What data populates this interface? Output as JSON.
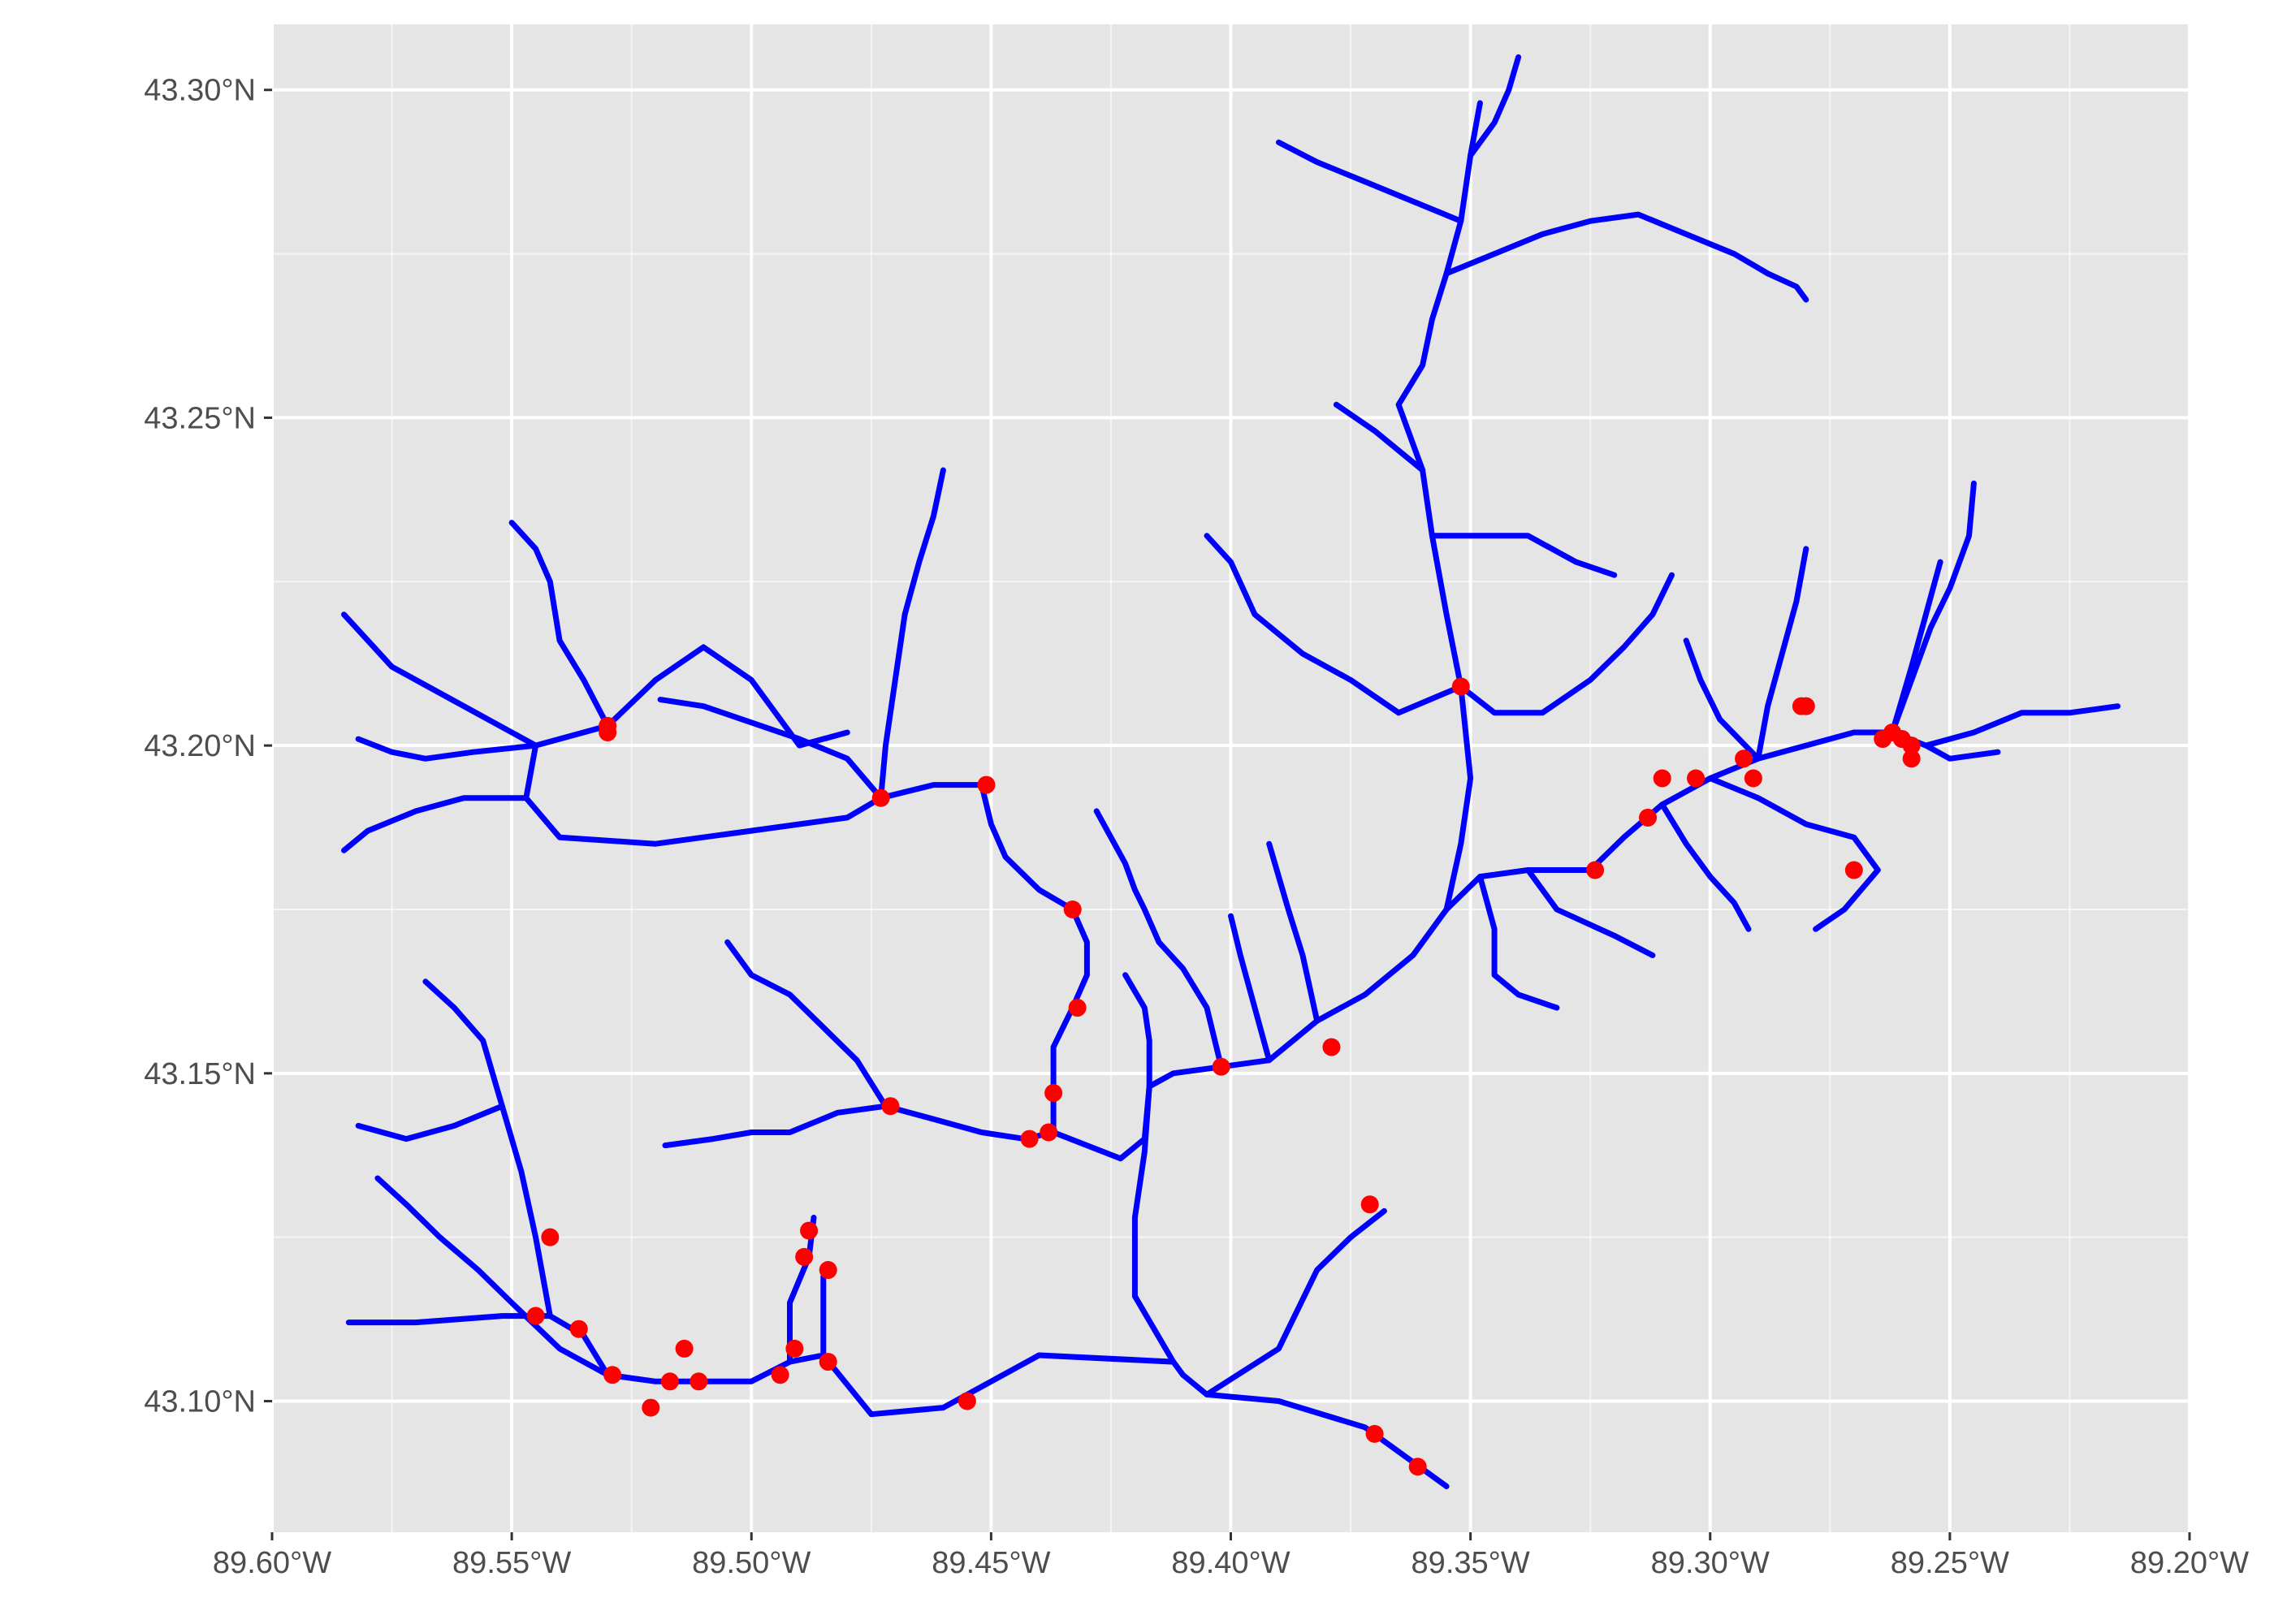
{
  "chart_data": {
    "type": "map",
    "title": "",
    "xlabel": "",
    "ylabel": "",
    "xlim": [
      -89.6,
      -89.2
    ],
    "ylim": [
      43.08,
      43.31
    ],
    "grid": true,
    "background": "#e5e5e5",
    "grid_color": "#ffffff",
    "stream_color": "#0000ff",
    "point_color": "#ff0000",
    "x_ticks": [
      {
        "value": -89.6,
        "label": "89.60°W"
      },
      {
        "value": -89.55,
        "label": "89.55°W"
      },
      {
        "value": -89.5,
        "label": "89.50°W"
      },
      {
        "value": -89.45,
        "label": "89.45°W"
      },
      {
        "value": -89.4,
        "label": "89.40°W"
      },
      {
        "value": -89.35,
        "label": "89.35°W"
      },
      {
        "value": -89.3,
        "label": "89.30°W"
      },
      {
        "value": -89.25,
        "label": "89.25°W"
      },
      {
        "value": -89.2,
        "label": "89.20°W"
      }
    ],
    "y_ticks": [
      {
        "value": 43.1,
        "label": "43.10°N"
      },
      {
        "value": 43.15,
        "label": "43.15°N"
      },
      {
        "value": 43.2,
        "label": "43.20°N"
      },
      {
        "value": 43.25,
        "label": "43.25°N"
      },
      {
        "value": 43.3,
        "label": "43.30°N"
      }
    ],
    "streams": [
      [
        [
          -89.355,
          43.087
        ],
        [
          -89.372,
          43.096
        ],
        [
          -89.39,
          43.1
        ],
        [
          -89.405,
          43.101
        ],
        [
          -89.41,
          43.104
        ],
        [
          -89.412,
          43.106
        ],
        [
          -89.44,
          43.107
        ],
        [
          -89.46,
          43.099
        ],
        [
          -89.475,
          43.098
        ],
        [
          -89.485,
          43.107
        ],
        [
          -89.492,
          43.106
        ],
        [
          -89.5,
          43.103
        ],
        [
          -89.51,
          43.103
        ],
        [
          -89.52,
          43.103
        ],
        [
          -89.53,
          43.104
        ],
        [
          -89.535,
          43.11
        ],
        [
          -89.542,
          43.113
        ],
        [
          -89.552,
          43.113
        ],
        [
          -89.57,
          43.112
        ],
        [
          -89.584,
          43.112
        ]
      ],
      [
        [
          -89.412,
          43.106
        ],
        [
          -89.42,
          43.116
        ],
        [
          -89.42,
          43.128
        ],
        [
          -89.418,
          43.138
        ],
        [
          -89.417,
          43.148
        ],
        [
          -89.412,
          43.15
        ],
        [
          -89.402,
          43.151
        ],
        [
          -89.392,
          43.152
        ],
        [
          -89.382,
          43.158
        ],
        [
          -89.372,
          43.162
        ],
        [
          -89.362,
          43.168
        ],
        [
          -89.355,
          43.175
        ],
        [
          -89.348,
          43.18
        ],
        [
          -89.338,
          43.181
        ],
        [
          -89.325,
          43.181
        ],
        [
          -89.318,
          43.186
        ],
        [
          -89.31,
          43.191
        ],
        [
          -89.3,
          43.195
        ],
        [
          -89.29,
          43.198
        ],
        [
          -89.28,
          43.2
        ],
        [
          -89.27,
          43.202
        ],
        [
          -89.262,
          43.202
        ],
        [
          -89.255,
          43.2
        ],
        [
          -89.25,
          43.198
        ],
        [
          -89.24,
          43.199
        ]
      ],
      [
        [
          -89.417,
          43.148
        ],
        [
          -89.418,
          43.14
        ],
        [
          -89.423,
          43.137
        ],
        [
          -89.43,
          43.139
        ],
        [
          -89.437,
          43.141
        ],
        [
          -89.443,
          43.14
        ],
        [
          -89.452,
          43.141
        ],
        [
          -89.462,
          43.143
        ],
        [
          -89.472,
          43.145
        ],
        [
          -89.482,
          43.144
        ],
        [
          -89.492,
          43.141
        ],
        [
          -89.5,
          43.141
        ],
        [
          -89.508,
          43.14
        ],
        [
          -89.518,
          43.139
        ]
      ],
      [
        [
          -89.472,
          43.145
        ],
        [
          -89.478,
          43.152
        ],
        [
          -89.485,
          43.157
        ],
        [
          -89.492,
          43.162
        ],
        [
          -89.5,
          43.165
        ],
        [
          -89.505,
          43.17
        ]
      ],
      [
        [
          -89.437,
          43.141
        ],
        [
          -89.437,
          43.147
        ],
        [
          -89.437,
          43.154
        ],
        [
          -89.433,
          43.16
        ],
        [
          -89.43,
          43.165
        ],
        [
          -89.43,
          43.17
        ],
        [
          -89.433,
          43.175
        ],
        [
          -89.44,
          43.178
        ],
        [
          -89.447,
          43.183
        ],
        [
          -89.45,
          43.188
        ],
        [
          -89.452,
          43.194
        ],
        [
          -89.462,
          43.194
        ],
        [
          -89.473,
          43.192
        ],
        [
          -89.48,
          43.189
        ],
        [
          -89.49,
          43.188
        ],
        [
          -89.5,
          43.187
        ],
        [
          -89.52,
          43.185
        ],
        [
          -89.54,
          43.186
        ],
        [
          -89.547,
          43.192
        ],
        [
          -89.545,
          43.2
        ],
        [
          -89.53,
          43.203
        ],
        [
          -89.52,
          43.21
        ],
        [
          -89.51,
          43.215
        ],
        [
          -89.5,
          43.21
        ],
        [
          -89.495,
          43.205
        ],
        [
          -89.49,
          43.2
        ],
        [
          -89.48,
          43.202
        ]
      ],
      [
        [
          -89.473,
          43.192
        ],
        [
          -89.472,
          43.2
        ],
        [
          -89.47,
          43.21
        ],
        [
          -89.468,
          43.22
        ],
        [
          -89.465,
          43.228
        ],
        [
          -89.462,
          43.235
        ],
        [
          -89.46,
          43.242
        ]
      ],
      [
        [
          -89.473,
          43.192
        ],
        [
          -89.48,
          43.198
        ],
        [
          -89.49,
          43.201
        ],
        [
          -89.502,
          43.204
        ],
        [
          -89.51,
          43.206
        ],
        [
          -89.519,
          43.207
        ]
      ],
      [
        [
          -89.53,
          43.203
        ],
        [
          -89.535,
          43.21
        ],
        [
          -89.54,
          43.216
        ],
        [
          -89.542,
          43.225
        ],
        [
          -89.545,
          43.23
        ],
        [
          -89.55,
          43.234
        ]
      ],
      [
        [
          -89.545,
          43.2
        ],
        [
          -89.555,
          43.204
        ],
        [
          -89.565,
          43.208
        ],
        [
          -89.575,
          43.212
        ],
        [
          -89.58,
          43.216
        ],
        [
          -89.585,
          43.22
        ]
      ],
      [
        [
          -89.545,
          43.2
        ],
        [
          -89.558,
          43.199
        ],
        [
          -89.568,
          43.198
        ],
        [
          -89.575,
          43.199
        ],
        [
          -89.582,
          43.201
        ]
      ],
      [
        [
          -89.547,
          43.192
        ],
        [
          -89.56,
          43.192
        ],
        [
          -89.57,
          43.19
        ],
        [
          -89.58,
          43.187
        ],
        [
          -89.585,
          43.184
        ]
      ],
      [
        [
          -89.402,
          43.151
        ],
        [
          -89.405,
          43.16
        ],
        [
          -89.41,
          43.166
        ],
        [
          -89.415,
          43.17
        ],
        [
          -89.418,
          43.175
        ],
        [
          -89.42,
          43.178
        ],
        [
          -89.422,
          43.182
        ],
        [
          -89.425,
          43.186
        ],
        [
          -89.428,
          43.19
        ]
      ],
      [
        [
          -89.392,
          43.152
        ],
        [
          -89.395,
          43.16
        ],
        [
          -89.398,
          43.168
        ],
        [
          -89.4,
          43.174
        ]
      ],
      [
        [
          -89.382,
          43.158
        ],
        [
          -89.385,
          43.168
        ],
        [
          -89.388,
          43.175
        ],
        [
          -89.39,
          43.18
        ],
        [
          -89.392,
          43.185
        ]
      ],
      [
        [
          -89.355,
          43.175
        ],
        [
          -89.352,
          43.185
        ],
        [
          -89.35,
          43.195
        ],
        [
          -89.352,
          43.209
        ],
        [
          -89.355,
          43.22
        ],
        [
          -89.358,
          43.232
        ],
        [
          -89.36,
          43.242
        ],
        [
          -89.365,
          43.252
        ],
        [
          -89.36,
          43.258
        ],
        [
          -89.358,
          43.265
        ],
        [
          -89.355,
          43.272
        ],
        [
          -89.352,
          43.28
        ],
        [
          -89.35,
          43.29
        ],
        [
          -89.348,
          43.298
        ]
      ],
      [
        [
          -89.352,
          43.209
        ],
        [
          -89.365,
          43.205
        ],
        [
          -89.375,
          43.21
        ],
        [
          -89.385,
          43.214
        ],
        [
          -89.395,
          43.22
        ],
        [
          -89.4,
          43.228
        ],
        [
          -89.405,
          43.232
        ]
      ],
      [
        [
          -89.352,
          43.209
        ],
        [
          -89.345,
          43.205
        ],
        [
          -89.335,
          43.205
        ],
        [
          -89.325,
          43.21
        ],
        [
          -89.318,
          43.215
        ],
        [
          -89.312,
          43.22
        ],
        [
          -89.308,
          43.226
        ]
      ],
      [
        [
          -89.358,
          43.232
        ],
        [
          -89.348,
          43.232
        ],
        [
          -89.338,
          43.232
        ],
        [
          -89.328,
          43.228
        ],
        [
          -89.32,
          43.226
        ]
      ],
      [
        [
          -89.36,
          43.242
        ],
        [
          -89.37,
          43.248
        ],
        [
          -89.378,
          43.252
        ]
      ],
      [
        [
          -89.355,
          43.272
        ],
        [
          -89.345,
          43.275
        ],
        [
          -89.335,
          43.278
        ],
        [
          -89.325,
          43.28
        ],
        [
          -89.315,
          43.281
        ],
        [
          -89.305,
          43.278
        ],
        [
          -89.295,
          43.275
        ],
        [
          -89.288,
          43.272
        ],
        [
          -89.282,
          43.27
        ],
        [
          -89.28,
          43.268
        ]
      ],
      [
        [
          -89.352,
          43.28
        ],
        [
          -89.362,
          43.283
        ],
        [
          -89.372,
          43.286
        ],
        [
          -89.382,
          43.289
        ],
        [
          -89.39,
          43.292
        ]
      ],
      [
        [
          -89.35,
          43.29
        ],
        [
          -89.345,
          43.295
        ],
        [
          -89.342,
          43.3
        ],
        [
          -89.34,
          43.305
        ]
      ],
      [
        [
          -89.31,
          43.191
        ],
        [
          -89.305,
          43.185
        ],
        [
          -89.3,
          43.18
        ],
        [
          -89.295,
          43.176
        ],
        [
          -89.292,
          43.172
        ]
      ],
      [
        [
          -89.3,
          43.195
        ],
        [
          -89.29,
          43.192
        ],
        [
          -89.28,
          43.188
        ],
        [
          -89.27,
          43.186
        ],
        [
          -89.265,
          43.181
        ],
        [
          -89.272,
          43.175
        ],
        [
          -89.278,
          43.172
        ]
      ],
      [
        [
          -89.29,
          43.198
        ],
        [
          -89.288,
          43.206
        ],
        [
          -89.285,
          43.214
        ],
        [
          -89.282,
          43.222
        ],
        [
          -89.28,
          43.23
        ]
      ],
      [
        [
          -89.29,
          43.198
        ],
        [
          -89.298,
          43.204
        ],
        [
          -89.302,
          43.21
        ],
        [
          -89.305,
          43.216
        ]
      ],
      [
        [
          -89.262,
          43.202
        ],
        [
          -89.258,
          43.21
        ],
        [
          -89.254,
          43.218
        ],
        [
          -89.25,
          43.224
        ],
        [
          -89.246,
          43.232
        ],
        [
          -89.245,
          43.24
        ]
      ],
      [
        [
          -89.255,
          43.2
        ],
        [
          -89.245,
          43.202
        ],
        [
          -89.235,
          43.205
        ],
        [
          -89.225,
          43.205
        ],
        [
          -89.215,
          43.206
        ]
      ],
      [
        [
          -89.262,
          43.202
        ],
        [
          -89.258,
          43.212
        ],
        [
          -89.255,
          43.22
        ],
        [
          -89.252,
          43.228
        ]
      ],
      [
        [
          -89.338,
          43.181
        ],
        [
          -89.332,
          43.175
        ],
        [
          -89.32,
          43.171
        ],
        [
          -89.312,
          43.168
        ]
      ],
      [
        [
          -89.348,
          43.18
        ],
        [
          -89.345,
          43.172
        ],
        [
          -89.345,
          43.165
        ],
        [
          -89.34,
          43.162
        ],
        [
          -89.332,
          43.16
        ]
      ],
      [
        [
          -89.417,
          43.148
        ],
        [
          -89.417,
          43.155
        ],
        [
          -89.418,
          43.16
        ],
        [
          -89.422,
          43.165
        ]
      ],
      [
        [
          -89.405,
          43.101
        ],
        [
          -89.39,
          43.108
        ],
        [
          -89.382,
          43.12
        ],
        [
          -89.375,
          43.125
        ],
        [
          -89.368,
          43.129
        ]
      ],
      [
        [
          -89.53,
          43.104
        ],
        [
          -89.54,
          43.108
        ],
        [
          -89.55,
          43.115
        ],
        [
          -89.557,
          43.12
        ],
        [
          -89.565,
          43.125
        ],
        [
          -89.572,
          43.13
        ],
        [
          -89.578,
          43.134
        ]
      ],
      [
        [
          -89.542,
          43.113
        ],
        [
          -89.545,
          43.125
        ],
        [
          -89.548,
          43.135
        ],
        [
          -89.552,
          43.145
        ],
        [
          -89.556,
          43.155
        ],
        [
          -89.562,
          43.16
        ],
        [
          -89.568,
          43.164
        ]
      ],
      [
        [
          -89.552,
          43.145
        ],
        [
          -89.562,
          43.142
        ],
        [
          -89.572,
          43.14
        ],
        [
          -89.582,
          43.142
        ]
      ],
      [
        [
          -89.492,
          43.106
        ],
        [
          -89.492,
          43.115
        ],
        [
          -89.488,
          43.122
        ],
        [
          -89.487,
          43.128
        ]
      ],
      [
        [
          -89.485,
          43.107
        ],
        [
          -89.485,
          43.114
        ],
        [
          -89.485,
          43.119
        ]
      ]
    ],
    "points": [
      [
        -89.53,
        43.203
      ],
      [
        -89.53,
        43.202
      ],
      [
        -89.473,
        43.192
      ],
      [
        -89.451,
        43.194
      ],
      [
        -89.433,
        43.175
      ],
      [
        -89.432,
        43.16
      ],
      [
        -89.437,
        43.147
      ],
      [
        -89.438,
        43.141
      ],
      [
        -89.442,
        43.14
      ],
      [
        -89.471,
        43.145
      ],
      [
        -89.402,
        43.151
      ],
      [
        -89.379,
        43.154
      ],
      [
        -89.352,
        43.209
      ],
      [
        -89.324,
        43.181
      ],
      [
        -89.313,
        43.189
      ],
      [
        -89.31,
        43.195
      ],
      [
        -89.303,
        43.195
      ],
      [
        -89.293,
        43.198
      ],
      [
        -89.291,
        43.195
      ],
      [
        -89.281,
        43.206
      ],
      [
        -89.28,
        43.206
      ],
      [
        -89.27,
        43.181
      ],
      [
        -89.264,
        43.201
      ],
      [
        -89.262,
        43.202
      ],
      [
        -89.26,
        43.201
      ],
      [
        -89.258,
        43.2
      ],
      [
        -89.258,
        43.198
      ],
      [
        -89.371,
        43.13
      ],
      [
        -89.37,
        43.095
      ],
      [
        -89.361,
        43.09
      ],
      [
        -89.455,
        43.1
      ],
      [
        -89.542,
        43.125
      ],
      [
        -89.545,
        43.113
      ],
      [
        -89.536,
        43.111
      ],
      [
        -89.529,
        43.104
      ],
      [
        -89.521,
        43.099
      ],
      [
        -89.517,
        43.103
      ],
      [
        -89.514,
        43.108
      ],
      [
        -89.511,
        43.103
      ],
      [
        -89.494,
        43.104
      ],
      [
        -89.491,
        43.108
      ],
      [
        -89.489,
        43.122
      ],
      [
        -89.488,
        43.126
      ],
      [
        -89.484,
        43.12
      ],
      [
        -89.484,
        43.106
      ]
    ]
  }
}
